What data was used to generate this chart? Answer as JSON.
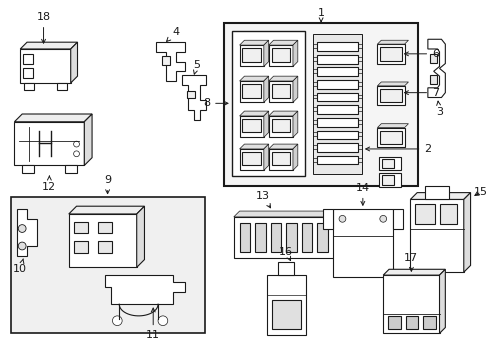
{
  "bg_color": "#ffffff",
  "line_color": "#1a1a1a",
  "fill_light": "#f8f8f8",
  "fill_gray": "#e8e8e8"
}
